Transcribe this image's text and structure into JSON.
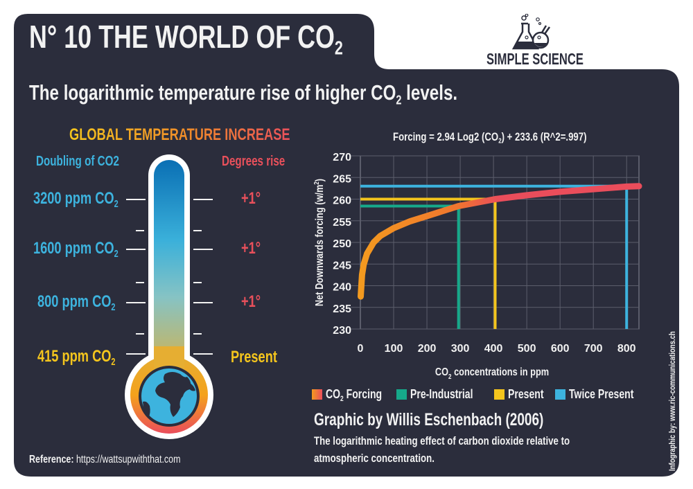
{
  "header": {
    "title": "N° 10  THE WORLD OF CO",
    "title_sub": "2",
    "subtitle_pre": "The logarithmic temperature rise of higher CO",
    "subtitle_sub": "2",
    "subtitle_post": " levels.",
    "logo_text": "SIMPLE SCIENCE",
    "logo_icon": "lab-flasks-icon"
  },
  "thermometer": {
    "title": "GLOBAL TEMPERATURE INCREASE",
    "left_header": "Doubling of CO2",
    "right_header": "Degrees rise",
    "levels": [
      {
        "ppm": "3200 ppm CO",
        "sub": "2",
        "rise": "+1°"
      },
      {
        "ppm": "1600 ppm CO",
        "sub": "2",
        "rise": "+1°"
      },
      {
        "ppm": "800 ppm CO",
        "sub": "2",
        "rise": "+1°"
      },
      {
        "ppm": "415 ppm CO",
        "sub": "2",
        "rise": "Present"
      }
    ],
    "bulb_icon": "earth-globe-icon"
  },
  "reference": {
    "label": "Reference:",
    "url": "https://wattsupwiththat.com"
  },
  "chart_data": {
    "type": "line",
    "title_pre": "Forcing = 2.94 Log2 (CO",
    "title_sub": "2",
    "title_post": ") + 233.6 (R^2=.997)",
    "xlabel_pre": "CO",
    "xlabel_sub": "2",
    "xlabel_post": " concentrations in ppm",
    "ylabel_pre": "Net Downwards forcing (w/m",
    "ylabel_sup": "2",
    "ylabel_post": ")",
    "xlim": [
      0,
      837
    ],
    "ylim": [
      230,
      270
    ],
    "xticks": [
      0,
      100,
      200,
      300,
      400,
      500,
      600,
      700,
      800
    ],
    "yticks": [
      230,
      235,
      240,
      245,
      250,
      255,
      260,
      265,
      270
    ],
    "grid": true,
    "series": [
      {
        "name": "CO2 Forcing",
        "kind": "curve",
        "x": [
          1,
          5,
          10,
          20,
          40,
          60,
          100,
          150,
          200,
          295,
          405,
          500,
          600,
          700,
          800,
          837
        ],
        "y": [
          237.5,
          242.5,
          244.9,
          247.4,
          250.0,
          251.5,
          253.3,
          254.9,
          256.1,
          258.4,
          260.0,
          260.9,
          261.7,
          262.3,
          262.9,
          263.0
        ]
      },
      {
        "name": "Pre-Industrial",
        "kind": "reference",
        "x": 295,
        "y": 258.4
      },
      {
        "name": "Present",
        "kind": "reference",
        "x": 405,
        "y": 260.0
      },
      {
        "name": "Twice Present",
        "kind": "reference",
        "x": 800,
        "y": 263.0
      }
    ],
    "legend": [
      {
        "label_pre": "CO",
        "label_sub": "2",
        "label_post": " Forcing",
        "color": "gradient"
      },
      {
        "label_pre": "Pre-Industrial",
        "label_sub": "",
        "label_post": "",
        "color": "#16a98a"
      },
      {
        "label_pre": "Present",
        "label_sub": "",
        "label_post": "",
        "color": "#f4c51d"
      },
      {
        "label_pre": "Twice Present",
        "label_sub": "",
        "label_post": "",
        "color": "#3db3de"
      }
    ],
    "legend_position": "bottom"
  },
  "credit": {
    "title": "Graphic by Willis Eschenbach (2006)",
    "description": "The logarithmic heating effect of carbon dioxide relative to atmospheric concentration."
  },
  "side_credit": "Infographic by: www.ric-communications.ch",
  "colors": {
    "panel": "#2b2d3c",
    "text": "#f2f2f2",
    "blue": "#3db3de",
    "red": "#e9505b",
    "yellow": "#f4c51d",
    "green": "#16a98a",
    "orange": "#f39a1f"
  }
}
